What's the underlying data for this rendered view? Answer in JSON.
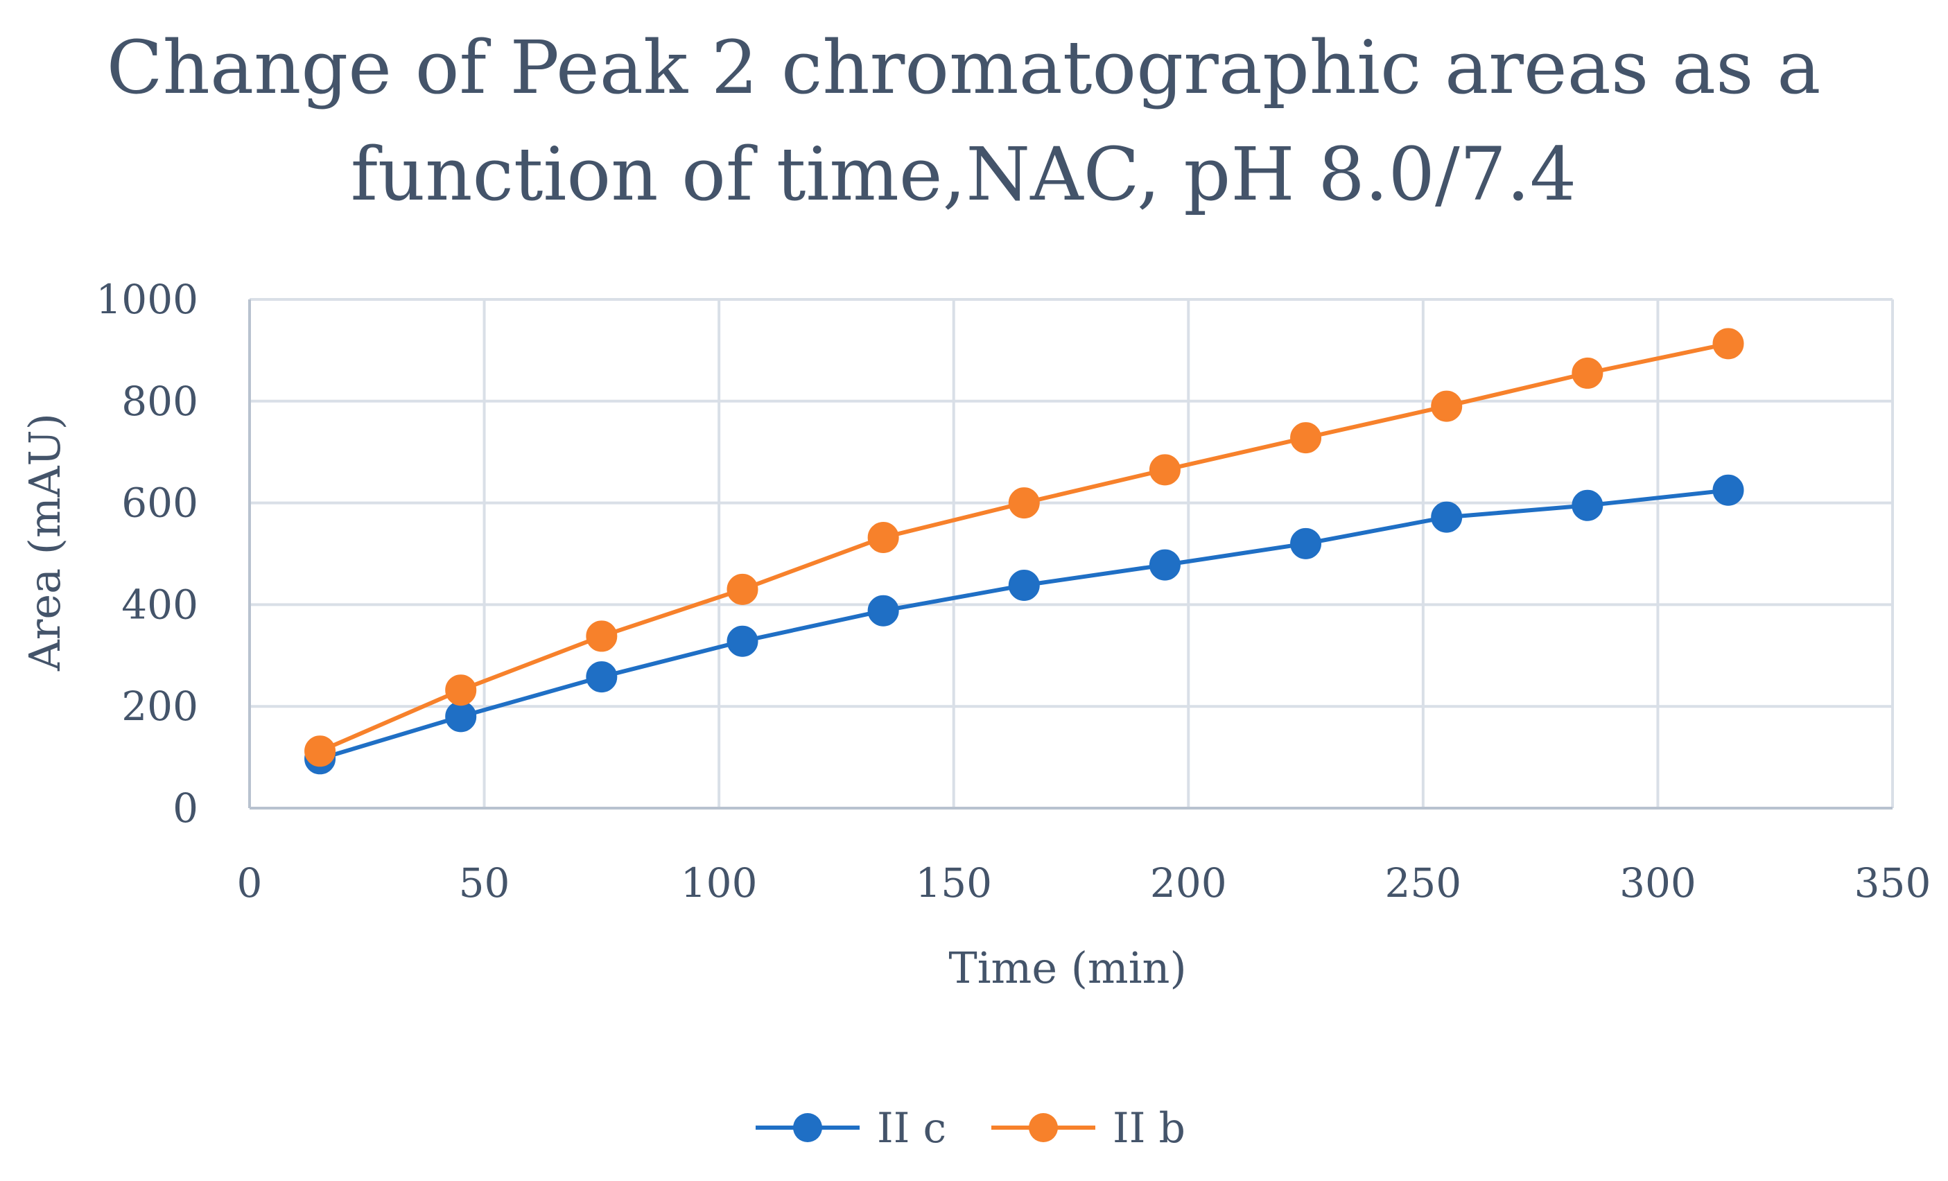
{
  "chart_data": {
    "type": "line",
    "title_lines": [
      "Change of Peak 2 chromatographic areas as a",
      "function of time,NAC, pH 8.0/7.4"
    ],
    "xlabel": "Time (min)",
    "ylabel": "Area (mAU)",
    "xlim": [
      0,
      350
    ],
    "ylim": [
      0,
      1000
    ],
    "x_ticks": [
      0,
      50,
      100,
      150,
      200,
      250,
      300,
      350
    ],
    "y_ticks": [
      0,
      200,
      400,
      600,
      800,
      1000
    ],
    "grid": true,
    "legend_position": "bottom",
    "x": [
      15,
      45,
      75,
      105,
      135,
      165,
      195,
      225,
      255,
      285,
      315
    ],
    "series": [
      {
        "name": "II c",
        "color": "#1f6fc5",
        "values": [
          97,
          180,
          258,
          328,
          388,
          438,
          478,
          520,
          572,
          595,
          625
        ]
      },
      {
        "name": "II b",
        "color": "#f7812b",
        "values": [
          112,
          232,
          338,
          430,
          532,
          600,
          665,
          728,
          790,
          855,
          913
        ]
      }
    ]
  }
}
